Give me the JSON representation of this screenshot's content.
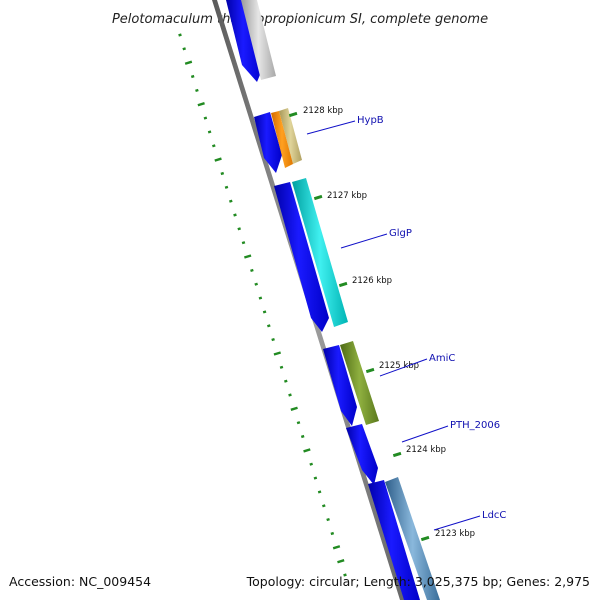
{
  "title": "Pelotomaculum thermopropionicum SI, complete genome",
  "footer": {
    "accession": "Accession: NC_009454",
    "summary": "Topology: circular; Length: 3,025,375 bp; Genes: 2,975"
  },
  "ticks": [
    {
      "label": "2128 kbp"
    },
    {
      "label": "2127 kbp"
    },
    {
      "label": "2126 kbp"
    },
    {
      "label": "2125 kbp"
    },
    {
      "label": "2124 kbp"
    },
    {
      "label": "2123 kbp"
    }
  ],
  "genes": [
    {
      "label": "HypB",
      "color": "#ff8c00"
    },
    {
      "label": "GlgP",
      "color": "#00cccc"
    },
    {
      "label": "AmiC",
      "color": "#6b8e23"
    },
    {
      "label": "PTH_2006",
      "color": ""
    },
    {
      "label": "LdcC",
      "color": "#4682b4"
    }
  ],
  "colors": {
    "cds": "#0000ee",
    "backbone": "#808080",
    "gc_skew": "#228b22",
    "hypothetical": "#c0c0c0",
    "tan_feature": "#c8b878"
  }
}
